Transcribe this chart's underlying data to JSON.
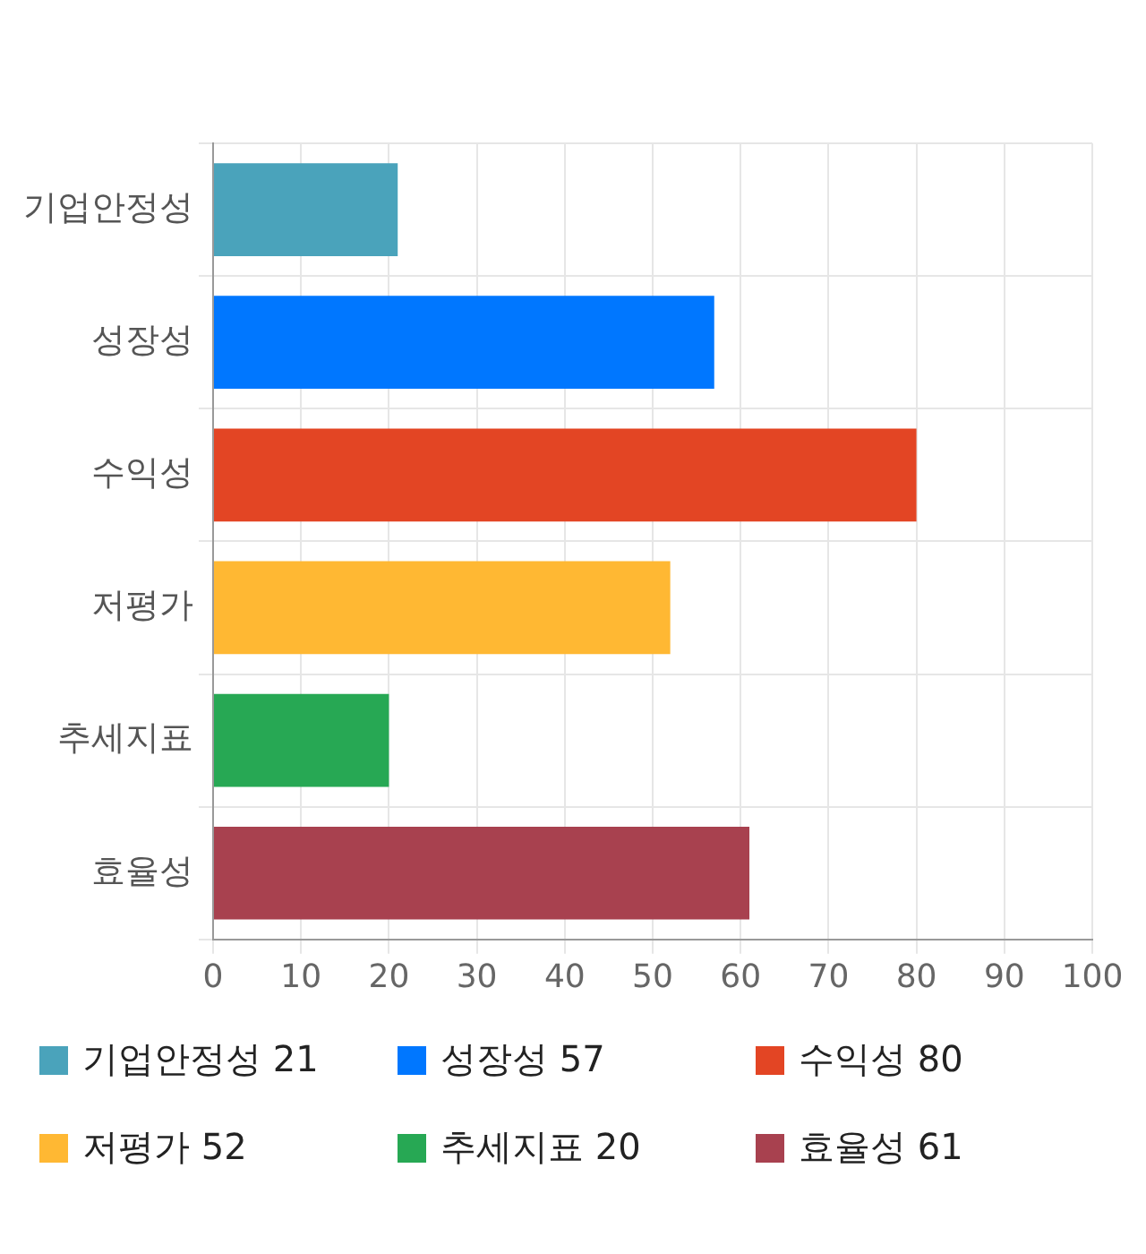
{
  "chart_data": {
    "type": "bar",
    "orientation": "horizontal",
    "categories": [
      "기업안정성",
      "성장성",
      "수익성",
      "저평가",
      "추세지표",
      "효율성"
    ],
    "values": [
      21,
      57,
      80,
      52,
      20,
      61
    ],
    "value_labels": [
      "21",
      "57",
      "80",
      "52",
      "20",
      "61"
    ],
    "colors": [
      "#4aa3bb",
      "#0077ff",
      "#e34524",
      "#ffb833",
      "#27a854",
      "#a8414f"
    ],
    "xlim": [
      0,
      100
    ],
    "xticks": [
      0,
      10,
      20,
      30,
      40,
      50,
      60,
      70,
      80,
      90,
      100
    ],
    "grid": true
  }
}
